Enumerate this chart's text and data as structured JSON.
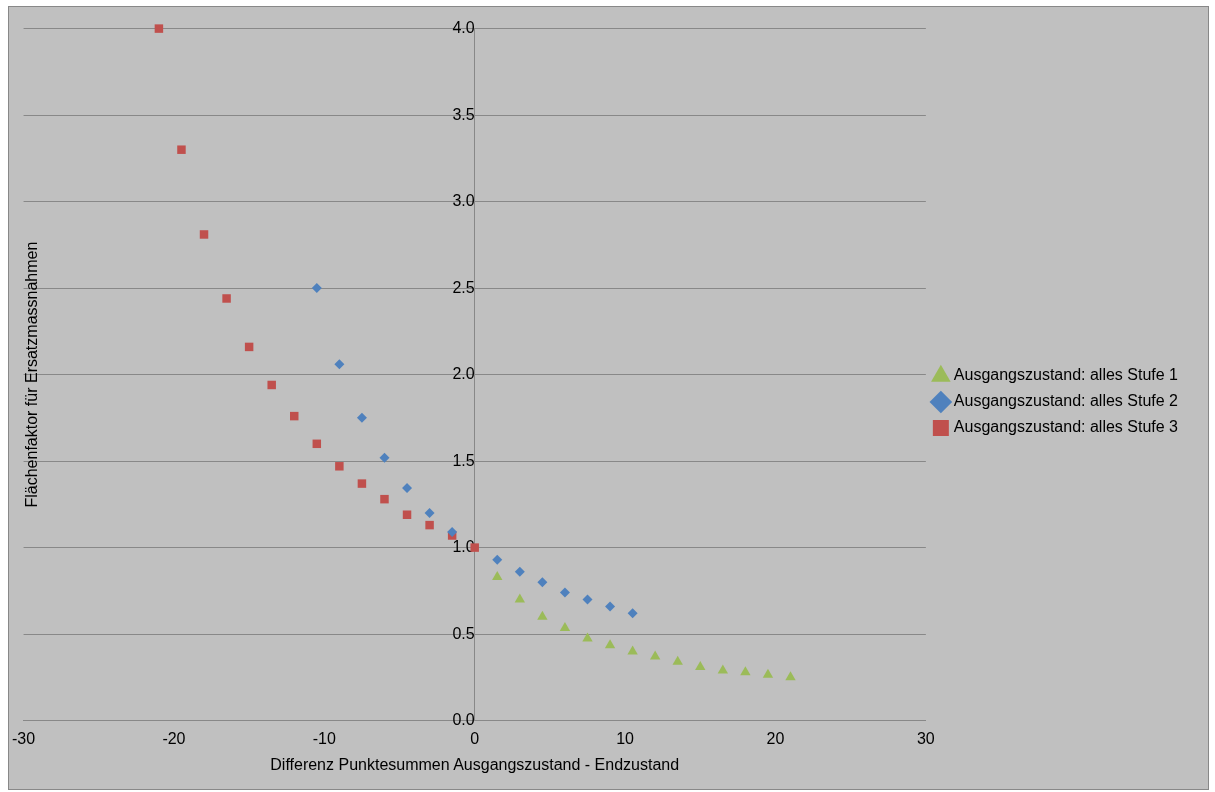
{
  "chart_data": {
    "type": "scatter",
    "xlabel": "Differenz Punktesummen Ausgangszustand - Endzustand",
    "ylabel": "Flächenfaktor für Ersatzmassnahmen",
    "xlim": [
      -30,
      30
    ],
    "xticks": [
      -30,
      -20,
      -10,
      0,
      10,
      20,
      30
    ],
    "ylim": [
      0,
      4
    ],
    "yticks": [
      {
        "value": 0,
        "label": "0.0"
      },
      {
        "value": 0.5,
        "label": "0.5"
      },
      {
        "value": 1,
        "label": "1.0"
      },
      {
        "value": 1.5,
        "label": "1.5"
      },
      {
        "value": 2,
        "label": "2.0"
      },
      {
        "value": 2.5,
        "label": "2.5"
      },
      {
        "value": 3,
        "label": "3.0"
      },
      {
        "value": 3.5,
        "label": "3.5"
      },
      {
        "value": 4,
        "label": "4.0"
      }
    ],
    "grid": "y",
    "legend": "right",
    "series": [
      {
        "name": "Ausgangszustand: alles Stufe 1",
        "color": "#9bbb59",
        "marker": "triangle",
        "x": [
          1.5,
          3,
          4.5,
          6,
          7.5,
          9,
          10.5,
          12,
          13.5,
          15,
          16.5,
          18,
          19.5,
          21
        ],
        "values": [
          0.83,
          0.7,
          0.6,
          0.535,
          0.475,
          0.435,
          0.4,
          0.37,
          0.34,
          0.31,
          0.29,
          0.28,
          0.265,
          0.25
        ]
      },
      {
        "name": "Ausgangszustand: alles Stufe 2",
        "color": "#4f81bd",
        "marker": "diamond",
        "x": [
          -10.5,
          -9,
          -7.5,
          -6,
          -4.5,
          -3,
          -1.5,
          1.5,
          3,
          4.5,
          6,
          7.5,
          9,
          10.5
        ],
        "values": [
          2.5,
          2.06,
          1.75,
          1.52,
          1.345,
          1.2,
          1.09,
          0.93,
          0.86,
          0.8,
          0.74,
          0.7,
          0.66,
          0.62
        ]
      },
      {
        "name": "Ausgangszustand: alles Stufe 3",
        "color": "#c0504d",
        "marker": "square",
        "x": [
          -21,
          -19.5,
          -18,
          -16.5,
          -15,
          -13.5,
          -12,
          -10.5,
          -9,
          -7.5,
          -6,
          -4.5,
          -3,
          -1.5,
          0
        ],
        "values": [
          4.0,
          3.3,
          2.81,
          2.44,
          2.16,
          1.94,
          1.76,
          1.6,
          1.47,
          1.37,
          1.28,
          1.19,
          1.13,
          1.07,
          1.0
        ]
      }
    ]
  }
}
